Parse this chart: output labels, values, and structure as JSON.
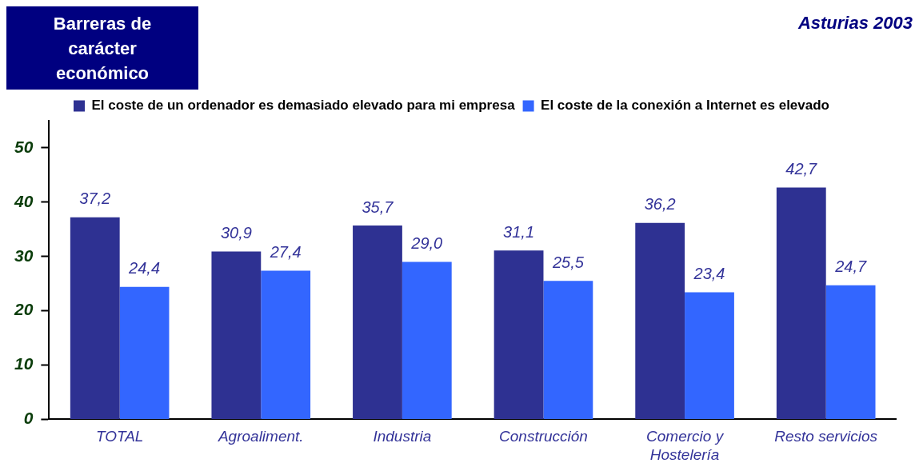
{
  "chart_data": {
    "type": "bar",
    "title": "Barreras de carácter económico",
    "subtitle": "Asturias 2003",
    "categories": [
      "TOTAL",
      "Agroaliment.",
      "Industria",
      "Construcción",
      "Comercio y Hostelería",
      "Resto servicios"
    ],
    "series": [
      {
        "name": "El coste de un ordenador es demasiado elevado para mi empresa",
        "color": "#2e3192",
        "values": [
          37.2,
          30.9,
          35.7,
          31.1,
          36.2,
          42.7
        ],
        "value_labels": [
          "37,2",
          "30,9",
          "35,7",
          "31,1",
          "36,2",
          "42,7"
        ]
      },
      {
        "name": "El coste de la conexión a Internet es elevado",
        "color": "#3366ff",
        "values": [
          24.4,
          27.4,
          29.0,
          25.5,
          23.4,
          24.7
        ],
        "value_labels": [
          "24,4",
          "27,4",
          "29,0",
          "25,5",
          "23,4",
          "24,7"
        ]
      }
    ],
    "ylim": [
      0,
      55
    ],
    "yticks": [
      0,
      10,
      20,
      30,
      40,
      50
    ],
    "grid": false,
    "legend": "top"
  }
}
